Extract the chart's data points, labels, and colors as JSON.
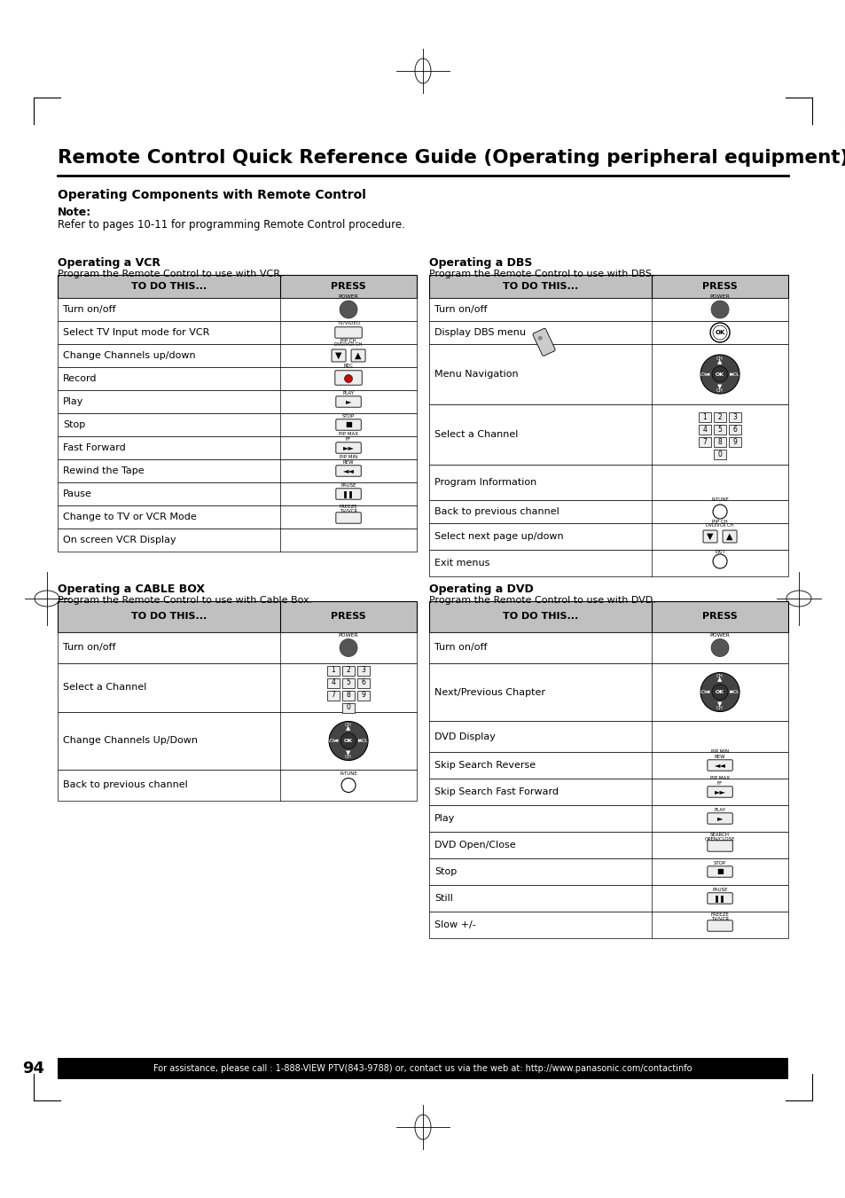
{
  "title": "Remote Control Quick Reference Guide (Operating peripheral equipment)",
  "subtitle": "Operating Components with Remote Control",
  "note_label": "Note:",
  "note_text": "Refer to pages 10-11 for programming Remote Control procedure.",
  "bg_color": "#ffffff",
  "footer_text": "For assistance, please call : 1-888-VIEW PTV(843-9788) or, contact us via the web at: http://www.panasonic.com/contactinfo",
  "footer_page": "94",
  "vcr_title": "Operating a VCR",
  "vcr_sub": "Program the Remote Control to use with VCR.",
  "vcr_rows": [
    "Turn on/off",
    "Select TV Input mode for VCR",
    "Change Channels up/down",
    "Record",
    "Play",
    "Stop",
    "Fast Forward",
    "Rewind the Tape",
    "Pause",
    "Change to TV or VCR Mode",
    "On screen VCR Display"
  ],
  "dbs_title": "Operating a DBS",
  "dbs_sub": "Program the Remote Control to use with DBS.",
  "dbs_rows": [
    "Turn on/off",
    "Display DBS menu",
    "Menu Navigation",
    "Select a Channel",
    "Program Information",
    "Back to previous channel",
    "Select next page up/down",
    "Exit menus"
  ],
  "cable_title": "Operating a CABLE BOX",
  "cable_sub": "Program the Remote Control to use with Cable Box.",
  "cable_rows": [
    "Turn on/off",
    "Select a Channel",
    "Change Channels Up/Down",
    "Back to previous channel"
  ],
  "dvd_title": "Operating a DVD",
  "dvd_sub": "Program the Remote Control to use with DVD.",
  "dvd_rows": [
    "Turn on/off",
    "Next/Previous Chapter",
    "DVD Display",
    "Skip Search Reverse",
    "Skip Search Fast Forward",
    "Play",
    "DVD Open/Close",
    "Stop",
    "Still",
    "Slow +/-"
  ]
}
